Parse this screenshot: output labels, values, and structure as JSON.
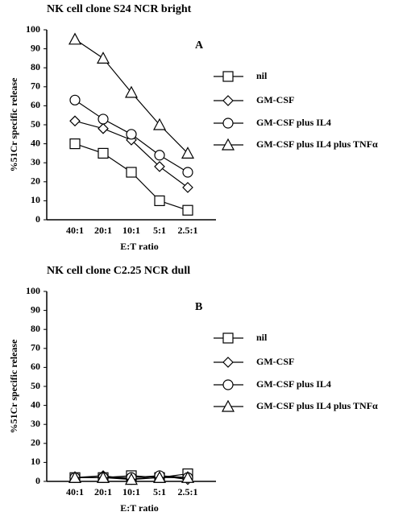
{
  "chart_data": [
    {
      "type": "line",
      "title": "NK cell clone S24 NCR bright",
      "panel_label": "A",
      "ylabel": "%51Cr specific release",
      "xlabel": "E:T ratio",
      "categories": [
        "40:1",
        "20:1",
        "10:1",
        "5:1",
        "2.5:1"
      ],
      "ylim": [
        0,
        100
      ],
      "yticks": [
        0,
        10,
        20,
        30,
        40,
        50,
        60,
        70,
        80,
        90,
        100
      ],
      "series": [
        {
          "name": "nil",
          "color": "#000000",
          "marker": "square",
          "values": [
            40,
            35,
            25,
            10,
            5
          ]
        },
        {
          "name": "GM-CSF",
          "color": "#000000",
          "marker": "diamond",
          "values": [
            52,
            48,
            42,
            28,
            17
          ]
        },
        {
          "name": "GM-CSF plus IL4",
          "color": "#000000",
          "marker": "circle",
          "values": [
            63,
            53,
            45,
            34,
            25
          ]
        },
        {
          "name": "GM-CSF plus IL4 plus TNFα",
          "color": "#000000",
          "marker": "triangle",
          "values": [
            95,
            85,
            67,
            50,
            35
          ]
        }
      ]
    },
    {
      "type": "line",
      "title": "NK cell clone C2.25 NCR dull",
      "panel_label": "B",
      "ylabel": "%51Cr specific release",
      "xlabel": "E:T ratio",
      "categories": [
        "40:1",
        "20:1",
        "10:1",
        "5:1",
        "2.5:1"
      ],
      "ylim": [
        0,
        100
      ],
      "yticks": [
        0,
        10,
        20,
        30,
        40,
        50,
        60,
        70,
        80,
        90,
        100
      ],
      "series": [
        {
          "name": "nil",
          "color": "#000000",
          "marker": "square",
          "values": [
            2,
            2,
            3,
            2,
            4
          ]
        },
        {
          "name": "GM-CSF",
          "color": "#000000",
          "marker": "diamond",
          "values": [
            2,
            3,
            1,
            3,
            1
          ]
        },
        {
          "name": "GM-CSF plus IL4",
          "color": "#000000",
          "marker": "circle",
          "values": [
            2,
            2,
            2,
            3,
            2
          ]
        },
        {
          "name": "GM-CSF plus IL4 plus TNFα",
          "color": "#000000",
          "marker": "triangle",
          "values": [
            2,
            2,
            1,
            2,
            2
          ]
        }
      ]
    }
  ]
}
